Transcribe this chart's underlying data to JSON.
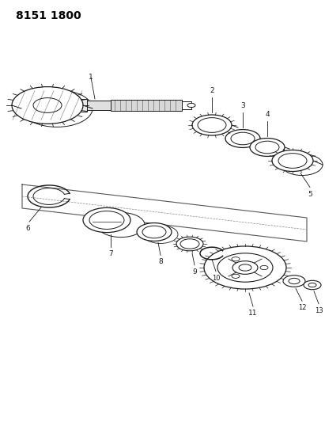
{
  "title": "8151 1800",
  "background_color": "#ffffff",
  "line_color": "#1a1a1a",
  "title_fontsize": 10,
  "fig_width": 4.11,
  "fig_height": 5.33,
  "dpi": 100
}
